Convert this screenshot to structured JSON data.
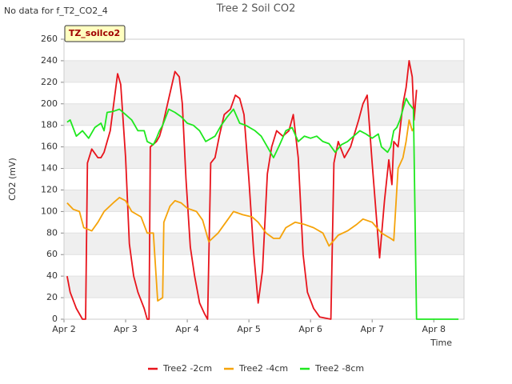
{
  "chart_data": {
    "type": "line",
    "title": "Tree 2 Soil CO2",
    "status_note": "No data for f_T2_CO2_4",
    "tag": "TZ_soilco2",
    "x_label": "Time",
    "y_label": "CO2 (mV)",
    "xlim": [
      2,
      8.49
    ],
    "ylim": [
      0,
      260
    ],
    "xticks": [
      {
        "value": 2,
        "label": "Apr 2"
      },
      {
        "value": 3,
        "label": "Apr 3"
      },
      {
        "value": 4,
        "label": "Apr 4"
      },
      {
        "value": 5,
        "label": "Apr 5"
      },
      {
        "value": 6,
        "label": "Apr 6"
      },
      {
        "value": 7,
        "label": "Apr 7"
      },
      {
        "value": 8,
        "label": "Apr 8"
      }
    ],
    "yticks": [
      0,
      20,
      40,
      60,
      80,
      100,
      120,
      140,
      160,
      180,
      200,
      220,
      240,
      260
    ],
    "grid": true,
    "series": [
      {
        "name": "Tree2 -2cm",
        "color": "#e8141c",
        "x": [
          2.05,
          2.1,
          2.2,
          2.3,
          2.35,
          2.38,
          2.45,
          2.55,
          2.6,
          2.65,
          2.75,
          2.87,
          2.92,
          3.0,
          3.06,
          3.13,
          3.2,
          3.3,
          3.35,
          3.38,
          3.4,
          3.5,
          3.55,
          3.6,
          3.7,
          3.8,
          3.87,
          3.92,
          3.98,
          4.05,
          4.12,
          4.2,
          4.28,
          4.33,
          4.38,
          4.45,
          4.52,
          4.6,
          4.7,
          4.78,
          4.85,
          4.92,
          5.0,
          5.08,
          5.15,
          5.22,
          5.3,
          5.37,
          5.45,
          5.55,
          5.65,
          5.72,
          5.8,
          5.88,
          5.95,
          6.05,
          6.15,
          6.33,
          6.38,
          6.45,
          6.55,
          6.65,
          6.78,
          6.85,
          6.92,
          7.0,
          7.12,
          7.2,
          7.27,
          7.32,
          7.35,
          7.42,
          7.5,
          7.55,
          7.6,
          7.65,
          7.68,
          7.72
        ],
        "values": [
          40,
          25,
          10,
          0,
          0,
          145,
          158,
          150,
          150,
          155,
          175,
          228,
          218,
          150,
          70,
          40,
          25,
          10,
          0,
          0,
          160,
          165,
          170,
          180,
          205,
          230,
          225,
          200,
          130,
          67,
          40,
          15,
          5,
          0,
          145,
          150,
          170,
          190,
          195,
          208,
          205,
          190,
          130,
          60,
          15,
          45,
          135,
          160,
          175,
          170,
          175,
          190,
          150,
          60,
          25,
          10,
          2,
          0,
          145,
          165,
          150,
          160,
          185,
          200,
          208,
          145,
          57,
          110,
          148,
          125,
          165,
          160,
          200,
          215,
          240,
          225,
          185,
          213
        ]
      },
      {
        "name": "Tree2 -4cm",
        "color": "#f5a30a",
        "x": [
          2.05,
          2.15,
          2.25,
          2.32,
          2.45,
          2.55,
          2.65,
          2.8,
          2.9,
          3.0,
          3.1,
          3.25,
          3.35,
          3.45,
          3.52,
          3.6,
          3.62,
          3.72,
          3.8,
          3.9,
          4.0,
          4.15,
          4.25,
          4.35,
          4.5,
          4.65,
          4.75,
          4.9,
          5.05,
          5.15,
          5.28,
          5.4,
          5.5,
          5.6,
          5.75,
          5.9,
          6.05,
          6.2,
          6.3,
          6.45,
          6.6,
          6.75,
          6.85,
          7.0,
          7.15,
          7.3,
          7.35,
          7.42,
          7.5,
          7.55,
          7.6,
          7.65,
          7.68
        ],
        "values": [
          108,
          102,
          100,
          85,
          82,
          90,
          100,
          108,
          113,
          110,
          100,
          95,
          80,
          80,
          17,
          20,
          90,
          105,
          110,
          108,
          103,
          100,
          92,
          72,
          80,
          92,
          100,
          97,
          95,
          90,
          80,
          75,
          75,
          85,
          90,
          88,
          85,
          80,
          68,
          78,
          82,
          88,
          93,
          90,
          80,
          75,
          73,
          140,
          150,
          165,
          185,
          175,
          178
        ]
      },
      {
        "name": "Tree2 -8cm",
        "color": "#1ee81e",
        "x": [
          2.05,
          2.1,
          2.2,
          2.3,
          2.4,
          2.5,
          2.6,
          2.65,
          2.7,
          2.8,
          2.9,
          3.0,
          3.1,
          3.2,
          3.3,
          3.35,
          3.45,
          3.5,
          3.55,
          3.6,
          3.7,
          3.8,
          3.9,
          4.0,
          4.1,
          4.2,
          4.3,
          4.45,
          4.55,
          4.65,
          4.75,
          4.85,
          4.95,
          5.1,
          5.2,
          5.3,
          5.4,
          5.5,
          5.6,
          5.7,
          5.8,
          5.9,
          6.0,
          6.1,
          6.2,
          6.3,
          6.4,
          6.5,
          6.6,
          6.7,
          6.8,
          6.9,
          7.0,
          7.1,
          7.15,
          7.25,
          7.3,
          7.35,
          7.4,
          7.45,
          7.5,
          7.55,
          7.6,
          7.67,
          7.72,
          8.4
        ],
        "values": [
          183,
          185,
          170,
          175,
          168,
          178,
          182,
          175,
          192,
          193,
          195,
          190,
          185,
          175,
          175,
          165,
          162,
          168,
          175,
          180,
          195,
          192,
          188,
          182,
          180,
          175,
          165,
          170,
          180,
          188,
          195,
          182,
          180,
          175,
          170,
          160,
          150,
          162,
          175,
          178,
          165,
          170,
          168,
          170,
          165,
          163,
          155,
          162,
          165,
          170,
          175,
          172,
          168,
          172,
          160,
          155,
          160,
          175,
          178,
          185,
          195,
          205,
          200,
          195,
          0,
          0
        ]
      }
    ]
  }
}
